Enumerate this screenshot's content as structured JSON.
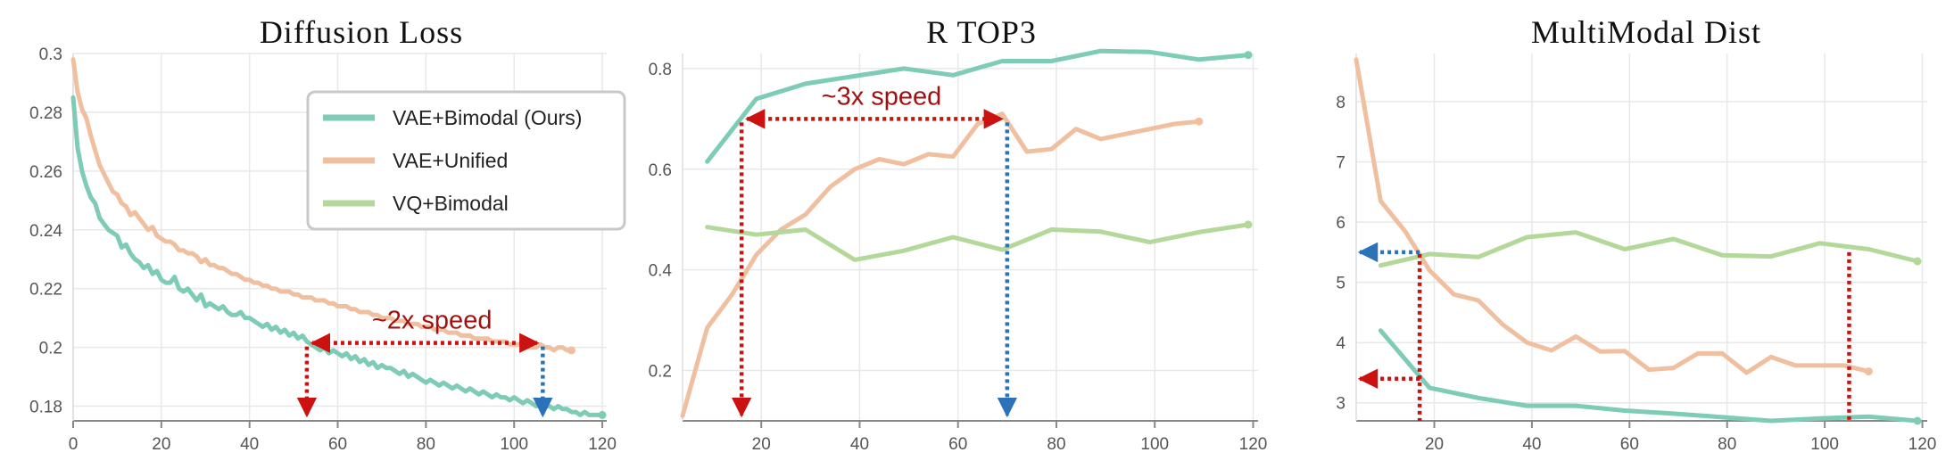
{
  "colors": {
    "teal": "#7ecbb6",
    "peach": "#f0bfa0",
    "lightgreen": "#b3d89a",
    "red": "#cc1111",
    "blue": "#2b72b8",
    "grid": "#e8e8e8",
    "axis": "#888888"
  },
  "chart_data": [
    {
      "type": "line",
      "title": "Diffusion Loss",
      "xlabel": "",
      "ylabel": "",
      "xlim": [
        0,
        121
      ],
      "ylim": [
        0.175,
        0.3
      ],
      "xticks": [
        0,
        20,
        40,
        60,
        80,
        100,
        120
      ],
      "yticks": [
        0.18,
        0.2,
        0.22,
        0.24,
        0.26,
        0.28,
        0.3
      ],
      "ytick_labels": [
        "0.18",
        "0.2",
        "0.22",
        "0.24",
        "0.26",
        "0.28",
        "0.3"
      ],
      "grid": true,
      "legend": {
        "position": "top-right",
        "entries": [
          {
            "label": "VAE+Bimodal (Ours)",
            "color": "teal"
          },
          {
            "label": "VAE+Unified",
            "color": "peach"
          },
          {
            "label": "VQ+Bimodal",
            "color": "lightgreen"
          }
        ]
      },
      "series": [
        {
          "color": "teal",
          "x": [
            0,
            1,
            2,
            3,
            4,
            5,
            6,
            7,
            8,
            9,
            10,
            11,
            12,
            13,
            14,
            15,
            16,
            17,
            18,
            19,
            20,
            21,
            22,
            23,
            24,
            25,
            26,
            27,
            28,
            29,
            30,
            31,
            32,
            33,
            34,
            35,
            36,
            37,
            38,
            39,
            40,
            41,
            42,
            43,
            44,
            45,
            46,
            47,
            48,
            49,
            50,
            51,
            52,
            53,
            54,
            55,
            56,
            57,
            58,
            59,
            60,
            61,
            62,
            63,
            64,
            65,
            66,
            67,
            68,
            69,
            70,
            71,
            72,
            73,
            74,
            75,
            76,
            77,
            78,
            79,
            80,
            81,
            82,
            83,
            84,
            85,
            86,
            87,
            88,
            89,
            90,
            91,
            92,
            93,
            94,
            95,
            96,
            97,
            98,
            99,
            100,
            101,
            102,
            103,
            104,
            105,
            106,
            107,
            108,
            109,
            110,
            111,
            112,
            113,
            114,
            115,
            116,
            117,
            118,
            119,
            120
          ],
          "y": [
            0.285,
            0.268,
            0.26,
            0.255,
            0.251,
            0.249,
            0.244,
            0.242,
            0.24,
            0.239,
            0.238,
            0.234,
            0.235,
            0.232,
            0.23,
            0.229,
            0.227,
            0.228,
            0.225,
            0.226,
            0.223,
            0.222,
            0.222,
            0.224,
            0.22,
            0.219,
            0.22,
            0.218,
            0.216,
            0.218,
            0.214,
            0.215,
            0.214,
            0.213,
            0.214,
            0.212,
            0.211,
            0.211,
            0.212,
            0.21,
            0.21,
            0.209,
            0.208,
            0.207,
            0.208,
            0.206,
            0.207,
            0.205,
            0.206,
            0.204,
            0.205,
            0.203,
            0.204,
            0.202,
            0.201,
            0.2,
            0.199,
            0.2,
            0.198,
            0.199,
            0.198,
            0.197,
            0.198,
            0.196,
            0.197,
            0.195,
            0.196,
            0.194,
            0.195,
            0.193,
            0.194,
            0.193,
            0.193,
            0.192,
            0.191,
            0.192,
            0.19,
            0.191,
            0.19,
            0.189,
            0.188,
            0.189,
            0.188,
            0.187,
            0.188,
            0.187,
            0.186,
            0.187,
            0.186,
            0.185,
            0.186,
            0.185,
            0.184,
            0.185,
            0.184,
            0.183,
            0.184,
            0.183,
            0.183,
            0.182,
            0.183,
            0.182,
            0.181,
            0.182,
            0.181,
            0.18,
            0.181,
            0.18,
            0.18,
            0.179,
            0.18,
            0.179,
            0.179,
            0.178,
            0.178,
            0.177,
            0.178,
            0.177,
            0.177,
            0.177,
            0.177
          ]
        },
        {
          "color": "peach",
          "x": [
            0,
            1,
            2,
            3,
            4,
            5,
            6,
            7,
            8,
            9,
            10,
            11,
            12,
            13,
            14,
            15,
            16,
            17,
            18,
            19,
            20,
            21,
            22,
            23,
            24,
            25,
            26,
            27,
            28,
            29,
            30,
            31,
            32,
            33,
            34,
            35,
            36,
            37,
            38,
            39,
            40,
            41,
            42,
            43,
            44,
            45,
            46,
            47,
            48,
            49,
            50,
            51,
            52,
            53,
            54,
            55,
            56,
            57,
            58,
            59,
            60,
            61,
            62,
            63,
            64,
            65,
            66,
            67,
            68,
            69,
            70,
            71,
            72,
            73,
            74,
            75,
            76,
            77,
            78,
            79,
            80,
            81,
            82,
            83,
            84,
            85,
            86,
            87,
            88,
            89,
            90,
            91,
            92,
            93,
            94,
            95,
            96,
            97,
            98,
            99,
            100,
            101,
            102,
            103,
            104,
            105,
            106,
            107,
            108,
            109,
            110,
            111,
            112,
            113
          ],
          "y": [
            0.298,
            0.287,
            0.281,
            0.278,
            0.272,
            0.267,
            0.262,
            0.259,
            0.256,
            0.253,
            0.252,
            0.249,
            0.248,
            0.245,
            0.246,
            0.244,
            0.242,
            0.24,
            0.241,
            0.238,
            0.237,
            0.236,
            0.236,
            0.235,
            0.233,
            0.233,
            0.232,
            0.232,
            0.231,
            0.229,
            0.23,
            0.228,
            0.228,
            0.227,
            0.227,
            0.226,
            0.225,
            0.225,
            0.224,
            0.223,
            0.223,
            0.222,
            0.222,
            0.221,
            0.221,
            0.22,
            0.22,
            0.219,
            0.219,
            0.219,
            0.218,
            0.218,
            0.217,
            0.217,
            0.217,
            0.216,
            0.216,
            0.216,
            0.215,
            0.215,
            0.214,
            0.214,
            0.214,
            0.213,
            0.213,
            0.212,
            0.212,
            0.212,
            0.211,
            0.211,
            0.21,
            0.21,
            0.21,
            0.209,
            0.209,
            0.209,
            0.208,
            0.208,
            0.208,
            0.207,
            0.207,
            0.207,
            0.206,
            0.206,
            0.206,
            0.205,
            0.205,
            0.205,
            0.204,
            0.204,
            0.204,
            0.203,
            0.203,
            0.203,
            0.203,
            0.202,
            0.202,
            0.202,
            0.202,
            0.201,
            0.201,
            0.201,
            0.201,
            0.2,
            0.2,
            0.2,
            0.201,
            0.2,
            0.2,
            0.199,
            0.2,
            0.2,
            0.199,
            0.199
          ]
        }
      ],
      "annotation": {
        "text": "~2x speed",
        "y": 0.2015,
        "from_x": 53,
        "to_x": 106.5,
        "left_drop": {
          "x": 53,
          "color": "red"
        },
        "right_drop": {
          "x": 106.5,
          "color": "blue"
        }
      }
    },
    {
      "type": "line",
      "title": "R TOP3",
      "xlabel": "",
      "ylabel": "",
      "xlim": [
        4,
        121
      ],
      "ylim": [
        0.1,
        0.83
      ],
      "xticks": [
        20,
        40,
        60,
        80,
        100,
        120
      ],
      "yticks": [
        0.2,
        0.4,
        0.6,
        0.8
      ],
      "ytick_labels": [
        "0.2",
        "0.4",
        "0.6",
        "0.8"
      ],
      "grid": true,
      "series": [
        {
          "color": "teal",
          "x": [
            9,
            19,
            29,
            39,
            49,
            59,
            69,
            79,
            89,
            99,
            109,
            119
          ],
          "y": [
            0.615,
            0.74,
            0.77,
            0.785,
            0.8,
            0.787,
            0.815,
            0.815,
            0.835,
            0.833,
            0.818,
            0.827
          ]
        },
        {
          "color": "peach",
          "x": [
            4,
            9,
            14,
            19,
            24,
            29,
            34,
            39,
            44,
            49,
            54,
            59,
            64,
            69,
            74,
            79,
            84,
            89,
            94,
            99,
            104,
            109
          ],
          "y": [
            0.11,
            0.285,
            0.35,
            0.43,
            0.48,
            0.51,
            0.565,
            0.6,
            0.62,
            0.61,
            0.63,
            0.625,
            0.69,
            0.71,
            0.635,
            0.64,
            0.68,
            0.66,
            0.67,
            0.68,
            0.69,
            0.695
          ]
        },
        {
          "color": "lightgreen",
          "x": [
            9,
            19,
            29,
            39,
            49,
            59,
            69,
            79,
            89,
            99,
            109,
            119
          ],
          "y": [
            0.485,
            0.47,
            0.48,
            0.42,
            0.438,
            0.465,
            0.44,
            0.48,
            0.476,
            0.455,
            0.475,
            0.49
          ]
        }
      ],
      "annotation": {
        "text": "~3x speed",
        "y": 0.7,
        "from_x": 16,
        "to_x": 70,
        "left_drop": {
          "x": 16,
          "color": "red"
        },
        "right_drop": {
          "x": 70,
          "color": "blue"
        }
      }
    },
    {
      "type": "line",
      "title": "MultiModal Dist",
      "xlabel": "",
      "ylabel": "",
      "xlim": [
        4,
        121
      ],
      "ylim": [
        2.7,
        8.8
      ],
      "xticks": [
        20,
        40,
        60,
        80,
        100,
        120
      ],
      "yticks": [
        3,
        4,
        5,
        6,
        7,
        8
      ],
      "ytick_labels": [
        "3",
        "4",
        "5",
        "6",
        "7",
        "8"
      ],
      "grid": true,
      "series": [
        {
          "color": "teal",
          "x": [
            9,
            19,
            29,
            39,
            49,
            59,
            69,
            79,
            89,
            99,
            109,
            119
          ],
          "y": [
            4.2,
            3.25,
            3.08,
            2.95,
            2.95,
            2.87,
            2.82,
            2.76,
            2.7,
            2.74,
            2.77,
            2.7
          ]
        },
        {
          "color": "peach",
          "x": [
            4,
            9,
            14,
            19,
            24,
            29,
            34,
            39,
            44,
            49,
            54,
            59,
            64,
            69,
            74,
            79,
            84,
            89,
            94,
            99,
            104,
            109
          ],
          "y": [
            8.7,
            6.35,
            5.85,
            5.2,
            4.8,
            4.7,
            4.3,
            4.0,
            3.87,
            4.1,
            3.85,
            3.86,
            3.55,
            3.58,
            3.82,
            3.82,
            3.5,
            3.76,
            3.62,
            3.62,
            3.62,
            3.52
          ]
        },
        {
          "color": "lightgreen",
          "x": [
            9,
            19,
            29,
            39,
            49,
            59,
            69,
            79,
            89,
            99,
            109,
            119
          ],
          "y": [
            5.28,
            5.47,
            5.42,
            5.75,
            5.83,
            5.55,
            5.72,
            5.45,
            5.43,
            5.65,
            5.55,
            5.35
          ]
        }
      ],
      "markers": [
        {
          "kind": "vertical",
          "x": 17,
          "y_from": 5.47,
          "color": "red"
        },
        {
          "kind": "vertical",
          "x": 105,
          "y_from": 5.5,
          "color": "red"
        },
        {
          "kind": "horizontal",
          "y": 5.5,
          "x_to": 17,
          "color": "blue"
        },
        {
          "kind": "horizontal",
          "y": 3.4,
          "x_to": 17,
          "color": "red"
        }
      ]
    }
  ]
}
